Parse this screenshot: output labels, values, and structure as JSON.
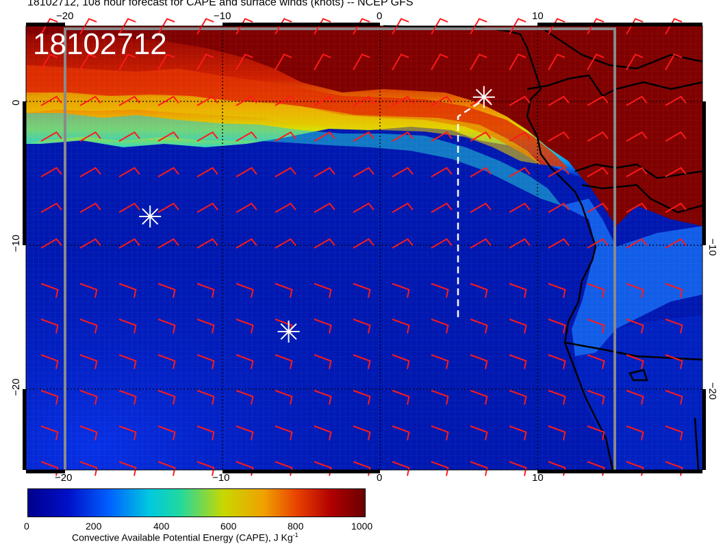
{
  "title": "18102712, 108 hour forecast for CAPE and surface winds (knots) -- NCEP GFS",
  "stamp": "18102712",
  "axes": {
    "lon_ticks_top": [
      "−20",
      "−10",
      "0",
      "10"
    ],
    "lon_ticks_bottom": [
      "−20",
      "−10",
      "0",
      "10"
    ],
    "lat_ticks_left": [
      "0",
      "−10",
      "−20"
    ],
    "lat_ticks_right": [
      "−10",
      "−20"
    ]
  },
  "colorbar": {
    "ticks": [
      "0",
      "200",
      "400",
      "600",
      "800",
      "1000"
    ],
    "caption": "Convective Available Potential Energy (CAPE), J Kg",
    "caption_sup": "-1",
    "colors": [
      "#00008c",
      "#0060ff",
      "#00c8e0",
      "#c8d800",
      "#f0a000",
      "#b00000",
      "#6a0000"
    ]
  },
  "markers": [
    {
      "name": "marker-star-north",
      "lon": 6.6,
      "lat": 0.3
    },
    {
      "name": "marker-star-west",
      "lon": -14.6,
      "lat": -8.0
    },
    {
      "name": "marker-star-south",
      "lon": -5.8,
      "lat": -16.0
    }
  ],
  "colors": {
    "barb": "#ff1a1a",
    "star": "#ffffff",
    "coast": "#000000"
  }
}
